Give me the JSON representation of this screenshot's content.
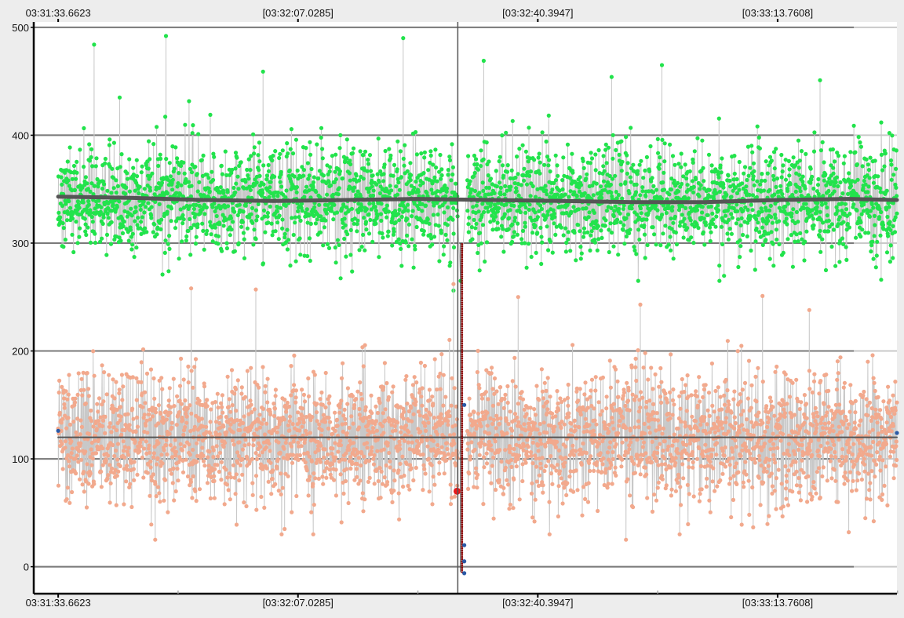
{
  "chart_data": {
    "type": "scatter",
    "title": "",
    "xlabel": "",
    "ylabel": "",
    "x_tick_labels": [
      "03:31:33.6623",
      "[03:32:07.0285]",
      "[03:32:40.3947]",
      "[03:33:13.7608]"
    ],
    "x_ticks_seconds": [
      0,
      33.3662,
      66.7324,
      100.0985
    ],
    "x_range_seconds": [
      -3.4,
      116.7
    ],
    "x_minor_ticks_seconds": [
      16.6831,
      50.0493,
      83.4155,
      116.7816
    ],
    "y_ticks": [
      0,
      100,
      200,
      300,
      400,
      500
    ],
    "ylim": [
      -25,
      505
    ],
    "grid": true,
    "legend": "none",
    "cursor_x_seconds": 55.6,
    "series": [
      {
        "name": "",
        "kind": "points",
        "color": "#22e34c",
        "point_count": 3000,
        "x_range_seconds": [
          0,
          116.7
        ],
        "approx_mean": 340,
        "typical_range": [
          280,
          410
        ],
        "gap_x_seconds": [
          55.6,
          56.9
        ],
        "outliers_high": [
          {
            "x": 5.0,
            "y": 484
          },
          {
            "x": 15.0,
            "y": 492
          },
          {
            "x": 48.0,
            "y": 490
          },
          {
            "x": 28.5,
            "y": 459
          },
          {
            "x": 59.2,
            "y": 469
          },
          {
            "x": 84.0,
            "y": 465
          },
          {
            "x": 77.0,
            "y": 454
          },
          {
            "x": 106.0,
            "y": 451
          }
        ],
        "outliers_low": [
          {
            "x": 55.0,
            "y": 256
          },
          {
            "x": 56.0,
            "y": 265
          },
          {
            "x": 114.5,
            "y": 266
          },
          {
            "x": 92.0,
            "y": 265
          }
        ]
      },
      {
        "name": "",
        "kind": "points",
        "color": "#f2a98d",
        "point_count": 3000,
        "x_range_seconds": [
          0,
          116.7
        ],
        "approx_mean": 120,
        "typical_range": [
          45,
          200
        ],
        "gap_x_seconds": [
          55.6,
          56.9
        ],
        "outliers_high": [
          {
            "x": 18.5,
            "y": 258
          },
          {
            "x": 27.5,
            "y": 257
          },
          {
            "x": 55.0,
            "y": 262
          },
          {
            "x": 64.0,
            "y": 250
          },
          {
            "x": 81.0,
            "y": 243
          },
          {
            "x": 98.0,
            "y": 251
          },
          {
            "x": 104.5,
            "y": 238
          }
        ],
        "outliers_low": [
          {
            "x": 13.5,
            "y": 25
          },
          {
            "x": 79.0,
            "y": 25
          },
          {
            "x": 31.5,
            "y": 35
          },
          {
            "x": 110.0,
            "y": 32
          }
        ]
      },
      {
        "name": "",
        "kind": "line",
        "color": "#555555",
        "x": [
          0,
          10,
          20,
          30,
          40,
          50,
          60,
          70,
          80,
          90,
          100,
          110,
          116.7
        ],
        "y": [
          343,
          342,
          340,
          339,
          340,
          341,
          340,
          339,
          338,
          338,
          340,
          341,
          340
        ]
      },
      {
        "name": "",
        "kind": "line",
        "color": "#555555",
        "x": [
          0,
          116.7
        ],
        "y": [
          120,
          120
        ]
      },
      {
        "name": "",
        "kind": "points",
        "color": "#8b0000",
        "x_seconds": 56.2,
        "y_range": [
          -5,
          300
        ]
      },
      {
        "name": "",
        "kind": "points",
        "color": "#2a5aa6",
        "points": [
          {
            "x": 0.0,
            "y": 126
          },
          {
            "x": 116.7,
            "y": 124
          },
          {
            "x": 56.5,
            "y": 150
          },
          {
            "x": 56.5,
            "y": 20
          },
          {
            "x": 56.5,
            "y": 5
          },
          {
            "x": 56.5,
            "y": -6
          }
        ]
      }
    ],
    "highlight_point": {
      "x": 55.5,
      "y": 70,
      "color": "#e8191b"
    }
  }
}
